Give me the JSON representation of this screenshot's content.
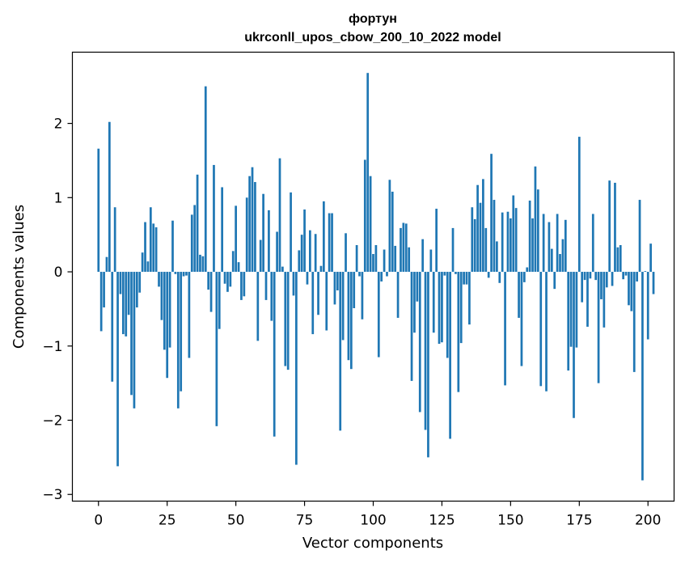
{
  "chart_data": {
    "type": "bar",
    "title": "фортун",
    "subtitle": "ukrconll_upos_cbow_200_10_2022 model",
    "xlabel": "Vector components",
    "ylabel": "Components values",
    "xlim": [
      -9.5,
      209.5
    ],
    "ylim": [
      -3.09,
      2.96
    ],
    "xticks": [
      0,
      25,
      50,
      75,
      100,
      125,
      150,
      175,
      200
    ],
    "xtick_labels": [
      "0",
      "25",
      "50",
      "75",
      "100",
      "125",
      "150",
      "175",
      "200"
    ],
    "yticks": [
      -3,
      -2,
      -1,
      0,
      1,
      2
    ],
    "ytick_labels": [
      "−3",
      "−2",
      "−1",
      "0",
      "1",
      "2"
    ],
    "grid": false,
    "legend": "none",
    "bar_color": "#1f77b4",
    "series": [
      {
        "values": [
          1.66,
          -0.8,
          -0.48,
          0.2,
          2.02,
          -1.48,
          0.87,
          -2.62,
          -0.3,
          -0.84,
          -0.87,
          -0.58,
          -1.66,
          -1.84,
          -0.48,
          -0.28,
          0.26,
          0.67,
          0.14,
          0.87,
          0.65,
          0.6,
          -0.2,
          -0.65,
          -1.05,
          -1.43,
          -1.02,
          0.69,
          -0.03,
          -1.84,
          -1.61,
          -0.06,
          -0.05,
          -1.16,
          0.77,
          0.9,
          1.31,
          0.23,
          0.21,
          2.5,
          -0.24,
          -0.54,
          1.44,
          -2.08,
          -0.77,
          1.14,
          -0.16,
          -0.27,
          -0.2,
          0.28,
          0.89,
          0.13,
          -0.38,
          -0.33,
          1.0,
          1.29,
          1.41,
          1.21,
          -0.93,
          0.43,
          1.05,
          -0.38,
          0.83,
          -0.66,
          -2.22,
          0.54,
          1.53,
          0.07,
          -1.27,
          -1.32,
          1.07,
          -0.32,
          -2.6,
          0.29,
          0.5,
          0.84,
          -0.17,
          0.56,
          -0.84,
          0.51,
          -0.58,
          0.08,
          0.95,
          -0.79,
          0.79,
          0.79,
          -0.44,
          -0.25,
          -2.14,
          -0.92,
          0.52,
          -1.19,
          -1.31,
          -0.49,
          0.36,
          -0.06,
          -0.64,
          1.51,
          2.68,
          1.29,
          0.24,
          0.36,
          -1.15,
          -0.13,
          0.3,
          -0.06,
          1.24,
          1.08,
          0.35,
          -0.62,
          0.59,
          0.66,
          0.65,
          0.33,
          -1.47,
          -0.82,
          -0.4,
          -1.89,
          0.44,
          -2.13,
          -2.5,
          0.3,
          -0.82,
          0.85,
          -0.97,
          -0.95,
          -0.05,
          -1.16,
          -2.25,
          0.59,
          -0.03,
          -1.62,
          -0.96,
          -0.17,
          -0.17,
          -0.71,
          0.87,
          0.71,
          1.17,
          0.93,
          1.25,
          0.59,
          -0.08,
          1.59,
          0.97,
          0.41,
          -0.15,
          0.8,
          -1.53,
          0.81,
          0.72,
          1.03,
          0.86,
          -0.62,
          -1.27,
          -0.14,
          0.06,
          0.96,
          0.72,
          1.42,
          1.11,
          -1.54,
          0.78,
          -1.61,
          0.67,
          0.31,
          -0.23,
          0.78,
          0.24,
          0.44,
          0.7,
          -1.33,
          -1.01,
          -1.97,
          -1.02,
          1.82,
          -0.41,
          -0.11,
          -0.74,
          -0.09,
          0.78,
          -0.11,
          -1.5,
          -0.37,
          -0.75,
          -0.21,
          1.23,
          -0.19,
          1.2,
          0.33,
          0.36,
          -0.1,
          -0.05,
          -0.45,
          -0.53,
          -1.35,
          -0.13,
          0.97,
          -2.81,
          0.01,
          -0.91,
          0.38,
          -0.3
        ]
      }
    ]
  }
}
